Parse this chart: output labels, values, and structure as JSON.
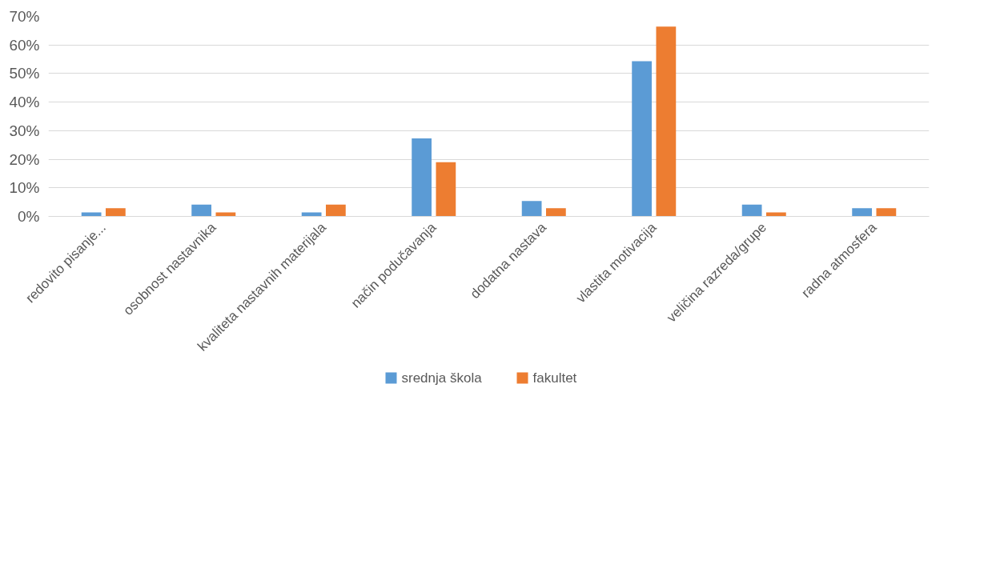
{
  "chart_data": {
    "type": "bar",
    "categories": [
      "redovito pisanje...",
      "osobnost nastavnika",
      "kvaliteta nastavnih materijala",
      "način podučavanja",
      "dodatna nastava",
      "vlastita motivacija",
      "veličina razreda/grupe",
      "radna atmosfera"
    ],
    "series": [
      {
        "name": "srednja škola",
        "color": "#5b9bd5",
        "values": [
          1.4,
          4.1,
          1.4,
          27.3,
          5.4,
          54.3,
          4.1,
          2.9
        ]
      },
      {
        "name": "fakultet",
        "color": "#ed7d31",
        "values": [
          2.9,
          1.4,
          4.1,
          19,
          2.9,
          66.4,
          1.4,
          2.9
        ]
      }
    ],
    "ylim": [
      0,
      70
    ],
    "yticks": [
      {
        "value": 0,
        "label": "0%"
      },
      {
        "value": 10,
        "label": "10%"
      },
      {
        "value": 20,
        "label": "20%"
      },
      {
        "value": 30,
        "label": "30%"
      },
      {
        "value": 40,
        "label": "40%"
      },
      {
        "value": 50,
        "label": "50%"
      },
      {
        "value": 60,
        "label": "60%"
      },
      {
        "value": 70,
        "label": "70%"
      }
    ],
    "grid": "y",
    "legend": "bottom"
  }
}
